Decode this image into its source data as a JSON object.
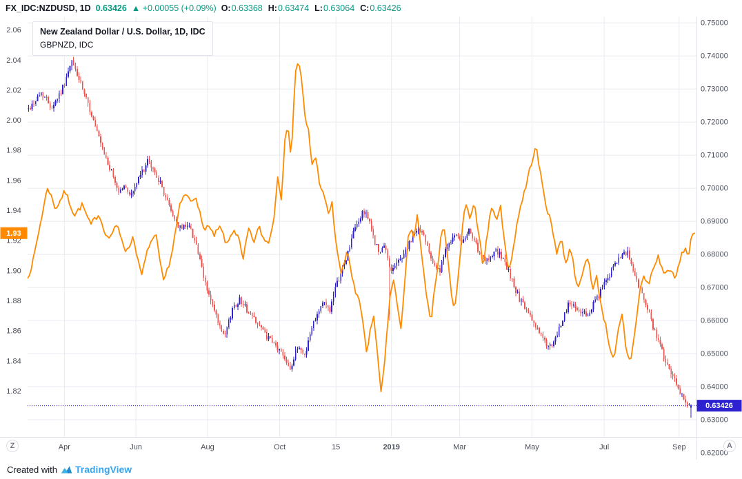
{
  "header": {
    "symbol": "FX_IDC:NZDUSD, 1D",
    "last_price": "0.63426",
    "change": "▲ +0.00055 (+0.09%)",
    "ohlc": [
      {
        "label": "O:",
        "value": "0.63368"
      },
      {
        "label": "H:",
        "value": "0.63474"
      },
      {
        "label": "L:",
        "value": "0.63064"
      },
      {
        "label": "C:",
        "value": "0.63426"
      }
    ]
  },
  "legend": {
    "title": "New Zealand Dollar / U.S. Dollar, 1D, IDC",
    "compare": "GBPNZD, IDC"
  },
  "toolbar": {
    "timezone_label": "Z",
    "auto_label": "A"
  },
  "footer": {
    "created_with": "Created with",
    "brand": "TradingView"
  },
  "colors": {
    "up": "#2e22d0",
    "down": "#ef5350",
    "line": "#ff8a00",
    "value_text": "#089981",
    "grid": "#e9ebf0",
    "axis_text": "#4a4e59",
    "border": "#e0e3eb",
    "text_dark": "#131722",
    "brand_blue": "#37a6ef"
  },
  "chart_data": {
    "type": "candlestick+line",
    "title": "New Zealand Dollar / U.S. Dollar, 1D, IDC with GBPNZD compare",
    "grid": true,
    "right_axis": {
      "symbol": "NZDUSD",
      "min": 0.6248,
      "max": 0.7519,
      "decimals": 5,
      "ticks": [
        0.75,
        0.74,
        0.73,
        0.72,
        0.71,
        0.7,
        0.69,
        0.68,
        0.67,
        0.66,
        0.65,
        0.64,
        0.63,
        0.62
      ],
      "last_value": 0.63426,
      "last_label": "0.63426"
    },
    "left_axis": {
      "symbol": "GBPNZD",
      "min": 1.7895,
      "max": 2.069,
      "decimals": 2,
      "ticks": [
        2.06,
        2.04,
        2.02,
        2.0,
        1.98,
        1.96,
        1.94,
        1.92,
        1.9,
        1.88,
        1.86,
        1.84,
        1.82
      ],
      "last_value": 1.925,
      "last_label": "1.93"
    },
    "x_axis": {
      "labels": [
        {
          "text": "Apr",
          "f": 0.055
        },
        {
          "text": "Jun",
          "f": 0.162
        },
        {
          "text": "Aug",
          "f": 0.269
        },
        {
          "text": "Oct",
          "f": 0.377
        },
        {
          "text": "15",
          "f": 0.461
        },
        {
          "text": "2019",
          "f": 0.544,
          "bold": true
        },
        {
          "text": "Mar",
          "f": 0.646
        },
        {
          "text": "May",
          "f": 0.754
        },
        {
          "text": "Jul",
          "f": 0.862
        },
        {
          "text": "Sep",
          "f": 0.974
        }
      ]
    },
    "last_bar": {
      "o": 0.63368,
      "h": 0.63474,
      "l": 0.63064,
      "c": 0.63426
    },
    "special_wicks": [
      {
        "f": 0.542,
        "low": 0.66
      }
    ],
    "series": [
      {
        "name": "NZDUSD",
        "type": "candlestick",
        "axis": "right",
        "bars": 368,
        "anchors": [
          [
            0.002,
            0.724
          ],
          [
            0.021,
            0.729
          ],
          [
            0.036,
            0.7245
          ],
          [
            0.052,
            0.73
          ],
          [
            0.067,
            0.7385
          ],
          [
            0.08,
            0.731
          ],
          [
            0.096,
            0.722
          ],
          [
            0.111,
            0.712
          ],
          [
            0.124,
            0.7055
          ],
          [
            0.136,
            0.699
          ],
          [
            0.144,
            0.7005
          ],
          [
            0.155,
            0.698
          ],
          [
            0.17,
            0.7045
          ],
          [
            0.18,
            0.708
          ],
          [
            0.194,
            0.7035
          ],
          [
            0.206,
            0.6975
          ],
          [
            0.219,
            0.691
          ],
          [
            0.229,
            0.6875
          ],
          [
            0.239,
            0.6895
          ],
          [
            0.251,
            0.684
          ],
          [
            0.263,
            0.673
          ],
          [
            0.273,
            0.6665
          ],
          [
            0.287,
            0.658
          ],
          [
            0.294,
            0.6545
          ],
          [
            0.307,
            0.664
          ],
          [
            0.318,
            0.6665
          ],
          [
            0.33,
            0.6625
          ],
          [
            0.342,
            0.66
          ],
          [
            0.356,
            0.6555
          ],
          [
            0.369,
            0.6525
          ],
          [
            0.381,
            0.65
          ],
          [
            0.394,
            0.6455
          ],
          [
            0.404,
            0.6525
          ],
          [
            0.414,
            0.6495
          ],
          [
            0.428,
            0.66
          ],
          [
            0.441,
            0.6655
          ],
          [
            0.452,
            0.6635
          ],
          [
            0.464,
            0.672
          ],
          [
            0.476,
            0.6785
          ],
          [
            0.487,
            0.6865
          ],
          [
            0.497,
            0.691
          ],
          [
            0.505,
            0.6935
          ],
          [
            0.515,
            0.6865
          ],
          [
            0.526,
            0.68
          ],
          [
            0.534,
            0.6825
          ],
          [
            0.542,
            0.6755
          ],
          [
            0.551,
            0.677
          ],
          [
            0.562,
            0.68
          ],
          [
            0.572,
            0.6835
          ],
          [
            0.582,
            0.688
          ],
          [
            0.593,
            0.6855
          ],
          [
            0.606,
            0.678
          ],
          [
            0.616,
            0.6745
          ],
          [
            0.629,
            0.684
          ],
          [
            0.639,
            0.6855
          ],
          [
            0.651,
            0.6835
          ],
          [
            0.662,
            0.6875
          ],
          [
            0.675,
            0.68
          ],
          [
            0.685,
            0.6775
          ],
          [
            0.699,
            0.6815
          ],
          [
            0.709,
            0.679
          ],
          [
            0.722,
            0.6735
          ],
          [
            0.734,
            0.667
          ],
          [
            0.747,
            0.6625
          ],
          [
            0.761,
            0.658
          ],
          [
            0.773,
            0.6535
          ],
          [
            0.784,
            0.6515
          ],
          [
            0.796,
            0.658
          ],
          [
            0.809,
            0.6655
          ],
          [
            0.823,
            0.6635
          ],
          [
            0.835,
            0.6615
          ],
          [
            0.847,
            0.665
          ],
          [
            0.861,
            0.6705
          ],
          [
            0.874,
            0.6755
          ],
          [
            0.887,
            0.679
          ],
          [
            0.897,
            0.6805
          ],
          [
            0.909,
            0.673
          ],
          [
            0.923,
            0.6655
          ],
          [
            0.936,
            0.6575
          ],
          [
            0.946,
            0.652
          ],
          [
            0.959,
            0.645
          ],
          [
            0.971,
            0.64
          ],
          [
            0.981,
            0.6365
          ],
          [
            0.99,
            0.634
          ],
          [
            0.993,
            0.63426
          ]
        ]
      },
      {
        "name": "GBPNZD",
        "type": "line",
        "axis": "left",
        "color": "#ff8a00",
        "anchors": [
          [
            0.0,
            1.895
          ],
          [
            0.008,
            1.906
          ],
          [
            0.018,
            1.929
          ],
          [
            0.03,
            1.956
          ],
          [
            0.042,
            1.941
          ],
          [
            0.056,
            1.953
          ],
          [
            0.07,
            1.937
          ],
          [
            0.082,
            1.944
          ],
          [
            0.094,
            1.93
          ],
          [
            0.106,
            1.938
          ],
          [
            0.12,
            1.921
          ],
          [
            0.134,
            1.93
          ],
          [
            0.148,
            1.912
          ],
          [
            0.158,
            1.923
          ],
          [
            0.17,
            1.896
          ],
          [
            0.182,
            1.918
          ],
          [
            0.192,
            1.923
          ],
          [
            0.203,
            1.892
          ],
          [
            0.215,
            1.91
          ],
          [
            0.228,
            1.944
          ],
          [
            0.236,
            1.951
          ],
          [
            0.244,
            1.946
          ],
          [
            0.252,
            1.95
          ],
          [
            0.262,
            1.928
          ],
          [
            0.27,
            1.93
          ],
          [
            0.278,
            1.923
          ],
          [
            0.288,
            1.929
          ],
          [
            0.298,
            1.917
          ],
          [
            0.308,
            1.928
          ],
          [
            0.316,
            1.921
          ],
          [
            0.322,
            1.906
          ],
          [
            0.33,
            1.928
          ],
          [
            0.338,
            1.919
          ],
          [
            0.346,
            1.929
          ],
          [
            0.354,
            1.92
          ],
          [
            0.36,
            1.919
          ],
          [
            0.368,
            1.933
          ],
          [
            0.374,
            1.965
          ],
          [
            0.379,
            1.947
          ],
          [
            0.385,
            1.988
          ],
          [
            0.39,
            1.995
          ],
          [
            0.394,
            1.974
          ],
          [
            0.4,
            2.03
          ],
          [
            0.405,
            2.041
          ],
          [
            0.41,
            2.025
          ],
          [
            0.415,
            2.0
          ],
          [
            0.42,
            1.993
          ],
          [
            0.425,
            1.97
          ],
          [
            0.43,
            1.977
          ],
          [
            0.436,
            1.96
          ],
          [
            0.443,
            1.949
          ],
          [
            0.45,
            1.938
          ],
          [
            0.455,
            1.945
          ],
          [
            0.461,
            1.919
          ],
          [
            0.468,
            1.898
          ],
          [
            0.473,
            1.903
          ],
          [
            0.478,
            1.915
          ],
          [
            0.483,
            1.901
          ],
          [
            0.49,
            1.885
          ],
          [
            0.497,
            1.878
          ],
          [
            0.502,
            1.864
          ],
          [
            0.507,
            1.843
          ],
          [
            0.512,
            1.86
          ],
          [
            0.517,
            1.871
          ],
          [
            0.522,
            1.85
          ],
          [
            0.528,
            1.819
          ],
          [
            0.533,
            1.837
          ],
          [
            0.538,
            1.862
          ],
          [
            0.543,
            1.887
          ],
          [
            0.548,
            1.896
          ],
          [
            0.553,
            1.875
          ],
          [
            0.558,
            1.86
          ],
          [
            0.563,
            1.885
          ],
          [
            0.568,
            1.919
          ],
          [
            0.573,
            1.929
          ],
          [
            0.578,
            1.921
          ],
          [
            0.583,
            1.938
          ],
          [
            0.588,
            1.914
          ],
          [
            0.593,
            1.896
          ],
          [
            0.598,
            1.878
          ],
          [
            0.603,
            1.866
          ],
          [
            0.608,
            1.887
          ],
          [
            0.613,
            1.901
          ],
          [
            0.618,
            1.922
          ],
          [
            0.623,
            1.929
          ],
          [
            0.628,
            1.91
          ],
          [
            0.633,
            1.887
          ],
          [
            0.638,
            1.871
          ],
          [
            0.645,
            1.901
          ],
          [
            0.65,
            1.929
          ],
          [
            0.655,
            1.944
          ],
          [
            0.662,
            1.934
          ],
          [
            0.668,
            1.944
          ],
          [
            0.675,
            1.924
          ],
          [
            0.681,
            1.903
          ],
          [
            0.687,
            1.923
          ],
          [
            0.693,
            1.943
          ],
          [
            0.7,
            1.934
          ],
          [
            0.707,
            1.942
          ],
          [
            0.713,
            1.921
          ],
          [
            0.719,
            1.898
          ],
          [
            0.725,
            1.912
          ],
          [
            0.731,
            1.93
          ],
          [
            0.738,
            1.945
          ],
          [
            0.745,
            1.956
          ],
          [
            0.752,
            1.97
          ],
          [
            0.76,
            1.9825
          ],
          [
            0.768,
            1.961
          ],
          [
            0.776,
            1.942
          ],
          [
            0.784,
            1.929
          ],
          [
            0.791,
            1.9125
          ],
          [
            0.798,
            1.9215
          ],
          [
            0.805,
            1.9035
          ],
          [
            0.811,
            1.9175
          ],
          [
            0.818,
            1.899
          ],
          [
            0.824,
            1.887
          ],
          [
            0.831,
            1.901
          ],
          [
            0.838,
            1.91
          ],
          [
            0.845,
            1.887
          ],
          [
            0.851,
            1.896
          ],
          [
            0.857,
            1.878
          ],
          [
            0.864,
            1.864
          ],
          [
            0.871,
            1.848
          ],
          [
            0.877,
            1.841
          ],
          [
            0.883,
            1.8595
          ],
          [
            0.889,
            1.871
          ],
          [
            0.895,
            1.8455
          ],
          [
            0.901,
            1.839
          ],
          [
            0.908,
            1.8595
          ],
          [
            0.915,
            1.887
          ],
          [
            0.921,
            1.896
          ],
          [
            0.928,
            1.8905
          ],
          [
            0.935,
            1.901
          ],
          [
            0.943,
            1.9095
          ],
          [
            0.952,
            1.897
          ],
          [
            0.96,
            1.902
          ],
          [
            0.968,
            1.8935
          ],
          [
            0.975,
            1.9065
          ],
          [
            0.982,
            1.9155
          ],
          [
            0.988,
            1.9095
          ],
          [
            0.993,
            1.9255
          ],
          [
            0.997,
            1.925
          ]
        ]
      }
    ]
  }
}
